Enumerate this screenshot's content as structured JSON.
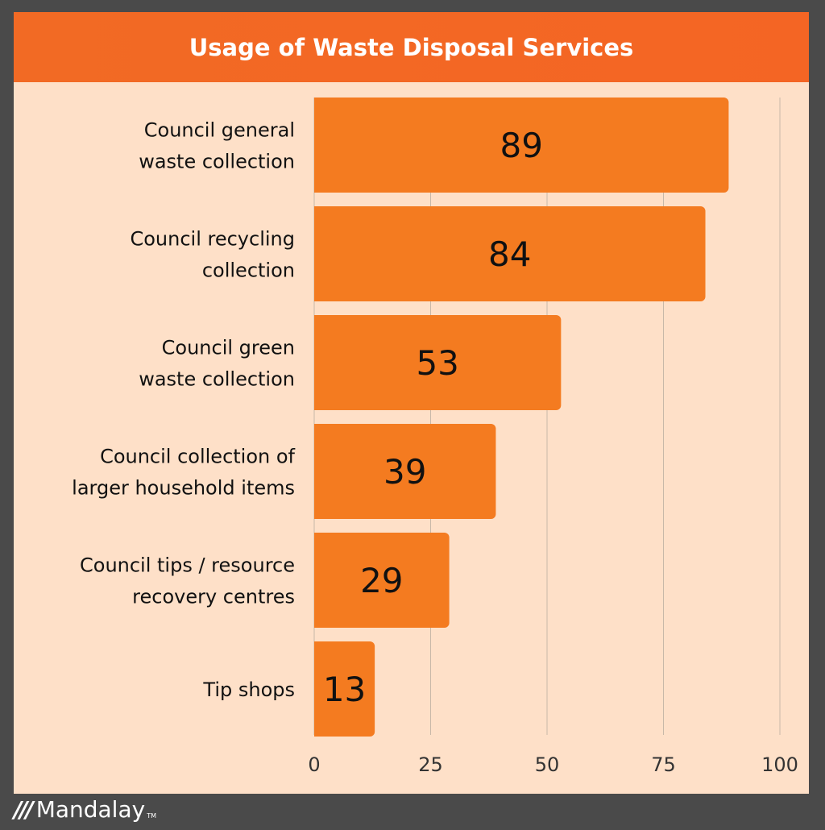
{
  "chart_data": {
    "type": "bar",
    "orientation": "horizontal",
    "title": "Usage of Waste Disposal Services",
    "categories": [
      [
        "Council general",
        "waste collection"
      ],
      [
        "Council recycling",
        "collection"
      ],
      [
        "Council green",
        "waste collection"
      ],
      [
        "Council collection of",
        "larger household items"
      ],
      [
        "Council tips / resource",
        "recovery centres"
      ],
      [
        "Tip shops"
      ]
    ],
    "values": [
      89,
      84,
      53,
      39,
      29,
      13
    ],
    "xlim": [
      0,
      100
    ],
    "xticks": [
      0,
      25,
      50,
      75,
      100
    ],
    "grid": true,
    "colors": {
      "bar": "#f47b20",
      "header": "#f26a24",
      "background": "#fee0c8",
      "frame": "#4a4a4a",
      "grid": "#c8b8a8"
    }
  },
  "brand": {
    "logo": "Mandalay",
    "tm": "TM"
  }
}
